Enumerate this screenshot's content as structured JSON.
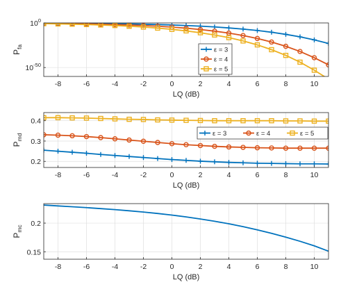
{
  "chart_data": [
    {
      "type": "line",
      "xlabel": "LQ (dB)",
      "ylabel_main": "P",
      "ylabel_sub": "fa",
      "yscale": "log",
      "xlim": [
        -9,
        11
      ],
      "ylim": [
        -60,
        0
      ],
      "xticks": [
        -8,
        -6,
        -4,
        -2,
        0,
        2,
        4,
        6,
        8,
        10
      ],
      "xtick_labels": [
        "-8",
        "-6",
        "-4",
        "-2",
        "0",
        "2",
        "4",
        "6",
        "8",
        "10"
      ],
      "yticks": [
        {
          "value": 0,
          "base": "10",
          "exp": "0"
        },
        {
          "value": -50,
          "base": "10",
          "exp": "-50"
        }
      ],
      "grid": true,
      "legend": {
        "position": "right-center",
        "orientation": "vertical"
      },
      "x": [
        -9,
        -8,
        -7,
        -6,
        -5,
        -4,
        -3,
        -2,
        -1,
        0,
        1,
        2,
        3,
        4,
        5,
        6,
        7,
        8,
        9,
        10,
        11
      ],
      "series": [
        {
          "name": "ε = 3",
          "marker": "plus",
          "color": "#0072BD",
          "values": [
            -0.3,
            -0.4,
            -0.5,
            -0.6,
            -0.7,
            -0.9,
            -1.1,
            -1.4,
            -1.8,
            -2.3,
            -2.9,
            -3.6,
            -4.5,
            -5.6,
            -6.9,
            -8.5,
            -10.4,
            -12.8,
            -15.6,
            -19,
            -23
          ]
        },
        {
          "name": "ε = 4",
          "marker": "circle",
          "color": "#D95319",
          "values": [
            -0.5,
            -0.7,
            -0.9,
            -1.1,
            -1.4,
            -1.8,
            -2.3,
            -2.9,
            -3.7,
            -4.7,
            -5.9,
            -7.4,
            -9.2,
            -11.4,
            -14.1,
            -17.4,
            -21.4,
            -26.2,
            -32,
            -39,
            -47
          ]
        },
        {
          "name": "ε = 5",
          "marker": "square",
          "color": "#EDB120",
          "values": [
            -0.8,
            -1.1,
            -1.4,
            -1.8,
            -2.3,
            -2.9,
            -3.7,
            -4.6,
            -5.8,
            -7.2,
            -8.9,
            -11,
            -13.5,
            -16.5,
            -20.2,
            -24.6,
            -30,
            -36.4,
            -44,
            -53,
            -63
          ]
        }
      ]
    },
    {
      "type": "line",
      "xlabel": "LQ (dB)",
      "ylabel_main": "P",
      "ylabel_sub": "md",
      "xlim": [
        -9,
        11
      ],
      "ylim": [
        0.17,
        0.44
      ],
      "xticks": [
        -8,
        -6,
        -4,
        -2,
        0,
        2,
        4,
        6,
        8,
        10
      ],
      "xtick_labels": [
        "-8",
        "-6",
        "-4",
        "-2",
        "0",
        "2",
        "4",
        "6",
        "8",
        "10"
      ],
      "yticks": [
        0.2,
        0.3,
        0.4
      ],
      "ytick_labels": [
        "0.2",
        "0.3",
        "0.4"
      ],
      "grid": true,
      "legend": {
        "position": "right-center",
        "orientation": "horizontal"
      },
      "x": [
        -9,
        -8,
        -7,
        -6,
        -5,
        -4,
        -3,
        -2,
        -1,
        0,
        1,
        2,
        3,
        4,
        5,
        6,
        7,
        8,
        9,
        10,
        11
      ],
      "series": [
        {
          "name": "ε = 3",
          "marker": "plus",
          "color": "#0072BD",
          "values": [
            0.255,
            0.25,
            0.245,
            0.24,
            0.234,
            0.229,
            0.224,
            0.219,
            0.214,
            0.209,
            0.205,
            0.201,
            0.198,
            0.195,
            0.193,
            0.191,
            0.19,
            0.189,
            0.188,
            0.188,
            0.187
          ]
        },
        {
          "name": "ε = 4",
          "marker": "circle",
          "color": "#D95319",
          "values": [
            0.331,
            0.329,
            0.326,
            0.322,
            0.317,
            0.311,
            0.305,
            0.299,
            0.293,
            0.287,
            0.282,
            0.278,
            0.274,
            0.271,
            0.269,
            0.267,
            0.266,
            0.265,
            0.265,
            0.265,
            0.265
          ]
        },
        {
          "name": "ε = 5",
          "marker": "square",
          "color": "#EDB120",
          "values": [
            0.415,
            0.415,
            0.414,
            0.413,
            0.411,
            0.409,
            0.407,
            0.406,
            0.404,
            0.403,
            0.402,
            0.401,
            0.4,
            0.4,
            0.4,
            0.4,
            0.4,
            0.399,
            0.399,
            0.398,
            0.398
          ]
        }
      ]
    },
    {
      "type": "line",
      "xlabel": "LQ (dB)",
      "ylabel_main": "P",
      "ylabel_sub": "mc",
      "xlim": [
        -9,
        11
      ],
      "ylim": [
        0.137,
        0.234
      ],
      "xticks": [
        -8,
        -6,
        -4,
        -2,
        0,
        2,
        4,
        6,
        8,
        10
      ],
      "xtick_labels": [
        "-8",
        "-6",
        "-4",
        "-2",
        "0",
        "2",
        "4",
        "6",
        "8",
        "10"
      ],
      "yticks": [
        0.15,
        0.2
      ],
      "ytick_labels": [
        "0.15",
        "0.2"
      ],
      "grid": true,
      "legend": null,
      "x": [
        -9,
        -8,
        -7,
        -6,
        -5,
        -4,
        -3,
        -2,
        -1,
        0,
        1,
        2,
        3,
        4,
        5,
        6,
        7,
        8,
        9,
        10,
        11
      ],
      "series": [
        {
          "color": "#0072BD",
          "marker": "none",
          "values": [
            0.2315,
            0.23,
            0.2285,
            0.227,
            0.2253,
            0.2235,
            0.2215,
            0.2193,
            0.2168,
            0.214,
            0.2108,
            0.2072,
            0.2032,
            0.1988,
            0.1938,
            0.1883,
            0.1822,
            0.1755,
            0.1683,
            0.1603,
            0.151
          ]
        }
      ]
    }
  ]
}
